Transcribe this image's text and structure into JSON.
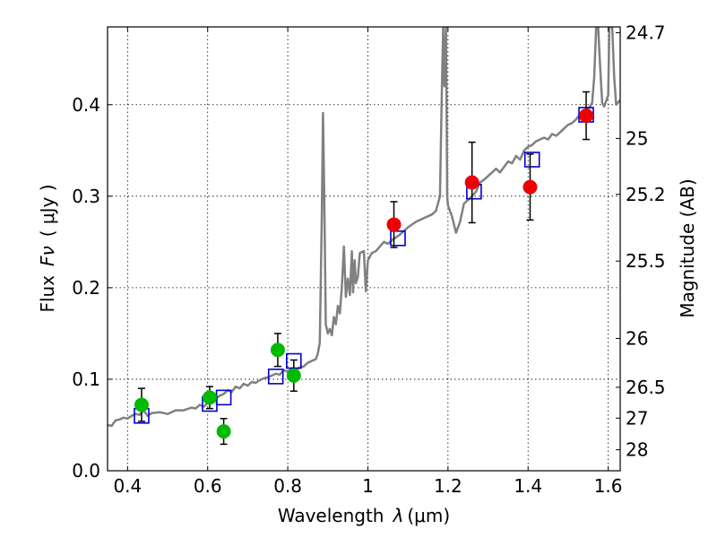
{
  "chart_data": {
    "type": "scatter",
    "xlabel_text": "Wavelength",
    "xlabel_symbol": "λ",
    "xlabel_unit": "(μm)",
    "ylabel_text": "Flux",
    "ylabel_symbol": "Fν",
    "ylabel_unit": "( μJy )",
    "y2label": "Magnitude (AB)",
    "xlim": [
      0.35,
      1.63
    ],
    "ylim": [
      0.0,
      0.485
    ],
    "grid": true,
    "x_ticks": [
      {
        "value": 0.4,
        "label": "0.4"
      },
      {
        "value": 0.6,
        "label": "0.6"
      },
      {
        "value": 0.8,
        "label": "0.8"
      },
      {
        "value": 1.0,
        "label": "1"
      },
      {
        "value": 1.2,
        "label": "1.2"
      },
      {
        "value": 1.4,
        "label": "1.4"
      },
      {
        "value": 1.6,
        "label": "1.6"
      }
    ],
    "y_ticks": [
      {
        "value": 0.0,
        "label": "0.0"
      },
      {
        "value": 0.1,
        "label": "0.1"
      },
      {
        "value": 0.2,
        "label": "0.2"
      },
      {
        "value": 0.3,
        "label": "0.3"
      },
      {
        "value": 0.4,
        "label": "0.4"
      }
    ],
    "mag_ticks": [
      {
        "value": 24.7,
        "label": "24.7"
      },
      {
        "value": 25.0,
        "label": "25"
      },
      {
        "value": 25.2,
        "label": "25.2"
      },
      {
        "value": 25.5,
        "label": "25.5"
      },
      {
        "value": 26.0,
        "label": "26"
      },
      {
        "value": 26.5,
        "label": "26.5"
      },
      {
        "value": 27.0,
        "label": "27"
      },
      {
        "value": 28.0,
        "label": "28"
      }
    ],
    "series": [
      {
        "kind": "template_spectrum",
        "color": "#808080",
        "points": [
          [
            0.35,
            0.05
          ],
          [
            0.36,
            0.049
          ],
          [
            0.37,
            0.055
          ],
          [
            0.38,
            0.056
          ],
          [
            0.39,
            0.058
          ],
          [
            0.4,
            0.057
          ],
          [
            0.41,
            0.06
          ],
          [
            0.42,
            0.062
          ],
          [
            0.43,
            0.061
          ],
          [
            0.44,
            0.066
          ],
          [
            0.45,
            0.06
          ],
          [
            0.46,
            0.063
          ],
          [
            0.48,
            0.064
          ],
          [
            0.5,
            0.062
          ],
          [
            0.52,
            0.066
          ],
          [
            0.54,
            0.066
          ],
          [
            0.56,
            0.069
          ],
          [
            0.57,
            0.068
          ],
          [
            0.58,
            0.072
          ],
          [
            0.59,
            0.07
          ],
          [
            0.6,
            0.074
          ],
          [
            0.61,
            0.076
          ],
          [
            0.62,
            0.079
          ],
          [
            0.63,
            0.082
          ],
          [
            0.64,
            0.084
          ],
          [
            0.65,
            0.088
          ],
          [
            0.66,
            0.086
          ],
          [
            0.67,
            0.092
          ],
          [
            0.68,
            0.09
          ],
          [
            0.69,
            0.095
          ],
          [
            0.7,
            0.093
          ],
          [
            0.71,
            0.097
          ],
          [
            0.72,
            0.096
          ],
          [
            0.73,
            0.099
          ],
          [
            0.74,
            0.101
          ],
          [
            0.75,
            0.102
          ],
          [
            0.76,
            0.104
          ],
          [
            0.77,
            0.106
          ],
          [
            0.78,
            0.105
          ],
          [
            0.79,
            0.11
          ],
          [
            0.8,
            0.108
          ],
          [
            0.81,
            0.112
          ],
          [
            0.82,
            0.11
          ],
          [
            0.83,
            0.113
          ],
          [
            0.84,
            0.114
          ],
          [
            0.85,
            0.118
          ],
          [
            0.86,
            0.12
          ],
          [
            0.87,
            0.122
          ],
          [
            0.875,
            0.128
          ],
          [
            0.88,
            0.14
          ],
          [
            0.885,
            0.28
          ],
          [
            0.888,
            0.391
          ],
          [
            0.891,
            0.3
          ],
          [
            0.895,
            0.16
          ],
          [
            0.9,
            0.15
          ],
          [
            0.905,
            0.155
          ],
          [
            0.91,
            0.148
          ],
          [
            0.915,
            0.168
          ],
          [
            0.92,
            0.16
          ],
          [
            0.925,
            0.18
          ],
          [
            0.93,
            0.172
          ],
          [
            0.935,
            0.2
          ],
          [
            0.94,
            0.245
          ],
          [
            0.945,
            0.19
          ],
          [
            0.95,
            0.21
          ],
          [
            0.955,
            0.192
          ],
          [
            0.96,
            0.24
          ],
          [
            0.963,
            0.195
          ],
          [
            0.967,
            0.23
          ],
          [
            0.97,
            0.205
          ],
          [
            0.975,
            0.212
          ],
          [
            0.98,
            0.238
          ],
          [
            0.99,
            0.24
          ],
          [
            0.995,
            0.196
          ],
          [
            1.0,
            0.23
          ],
          [
            1.01,
            0.238
          ],
          [
            1.02,
            0.24
          ],
          [
            1.03,
            0.245
          ],
          [
            1.04,
            0.25
          ],
          [
            1.05,
            0.248
          ],
          [
            1.06,
            0.252
          ],
          [
            1.07,
            0.255
          ],
          [
            1.08,
            0.258
          ],
          [
            1.09,
            0.262
          ],
          [
            1.1,
            0.266
          ],
          [
            1.12,
            0.272
          ],
          [
            1.14,
            0.276
          ],
          [
            1.16,
            0.28
          ],
          [
            1.17,
            0.284
          ],
          [
            1.175,
            0.292
          ],
          [
            1.18,
            0.3
          ],
          [
            1.185,
            0.42
          ],
          [
            1.188,
            0.485
          ],
          [
            1.191,
            0.42
          ],
          [
            1.195,
            0.485
          ],
          [
            1.198,
            0.3
          ],
          [
            1.2,
            0.29
          ],
          [
            1.21,
            0.278
          ],
          [
            1.22,
            0.26
          ],
          [
            1.23,
            0.272
          ],
          [
            1.24,
            0.292
          ],
          [
            1.25,
            0.296
          ],
          [
            1.26,
            0.3
          ],
          [
            1.27,
            0.305
          ],
          [
            1.28,
            0.315
          ],
          [
            1.29,
            0.318
          ],
          [
            1.3,
            0.322
          ],
          [
            1.31,
            0.326
          ],
          [
            1.32,
            0.33
          ],
          [
            1.33,
            0.326
          ],
          [
            1.34,
            0.332
          ],
          [
            1.35,
            0.338
          ],
          [
            1.36,
            0.336
          ],
          [
            1.37,
            0.344
          ],
          [
            1.38,
            0.34
          ],
          [
            1.39,
            0.35
          ],
          [
            1.4,
            0.354
          ],
          [
            1.41,
            0.356
          ],
          [
            1.42,
            0.36
          ],
          [
            1.43,
            0.362
          ],
          [
            1.44,
            0.364
          ],
          [
            1.45,
            0.362
          ],
          [
            1.46,
            0.368
          ],
          [
            1.47,
            0.366
          ],
          [
            1.48,
            0.37
          ],
          [
            1.49,
            0.374
          ],
          [
            1.5,
            0.378
          ],
          [
            1.51,
            0.38
          ],
          [
            1.52,
            0.384
          ],
          [
            1.53,
            0.39
          ],
          [
            1.54,
            0.392
          ],
          [
            1.55,
            0.395
          ],
          [
            1.56,
            0.402
          ],
          [
            1.565,
            0.43
          ],
          [
            1.57,
            0.485
          ],
          [
            1.575,
            0.485
          ],
          [
            1.58,
            0.44
          ],
          [
            1.585,
            0.402
          ],
          [
            1.59,
            0.398
          ],
          [
            1.6,
            0.41
          ],
          [
            1.603,
            0.485
          ],
          [
            1.61,
            0.485
          ],
          [
            1.615,
            0.43
          ],
          [
            1.62,
            0.4
          ],
          [
            1.63,
            0.405
          ]
        ]
      },
      {
        "kind": "model_photometry",
        "marker": "square",
        "color": "#0000cc",
        "points": [
          [
            0.435,
            0.06
          ],
          [
            0.605,
            0.073
          ],
          [
            0.64,
            0.08
          ],
          [
            0.77,
            0.103
          ],
          [
            0.815,
            0.12
          ],
          [
            1.075,
            0.254
          ],
          [
            1.265,
            0.305
          ],
          [
            1.41,
            0.34
          ],
          [
            1.545,
            0.389
          ]
        ]
      },
      {
        "kind": "observed_optical",
        "marker": "circle",
        "color": "#00bb00",
        "points": [
          {
            "x": 0.435,
            "y": 0.072,
            "err": 0.018
          },
          {
            "x": 0.605,
            "y": 0.08,
            "err": 0.012
          },
          {
            "x": 0.64,
            "y": 0.043,
            "err": 0.014
          },
          {
            "x": 0.775,
            "y": 0.132,
            "err": 0.018
          },
          {
            "x": 0.815,
            "y": 0.104,
            "err": 0.017
          }
        ]
      },
      {
        "kind": "observed_nir",
        "marker": "circle",
        "color": "#ee0000",
        "points": [
          {
            "x": 1.065,
            "y": 0.269,
            "err": 0.025
          },
          {
            "x": 1.26,
            "y": 0.315,
            "err": 0.044
          },
          {
            "x": 1.405,
            "y": 0.31,
            "err": 0.036
          },
          {
            "x": 1.545,
            "y": 0.388,
            "err": 0.026
          }
        ]
      }
    ]
  }
}
